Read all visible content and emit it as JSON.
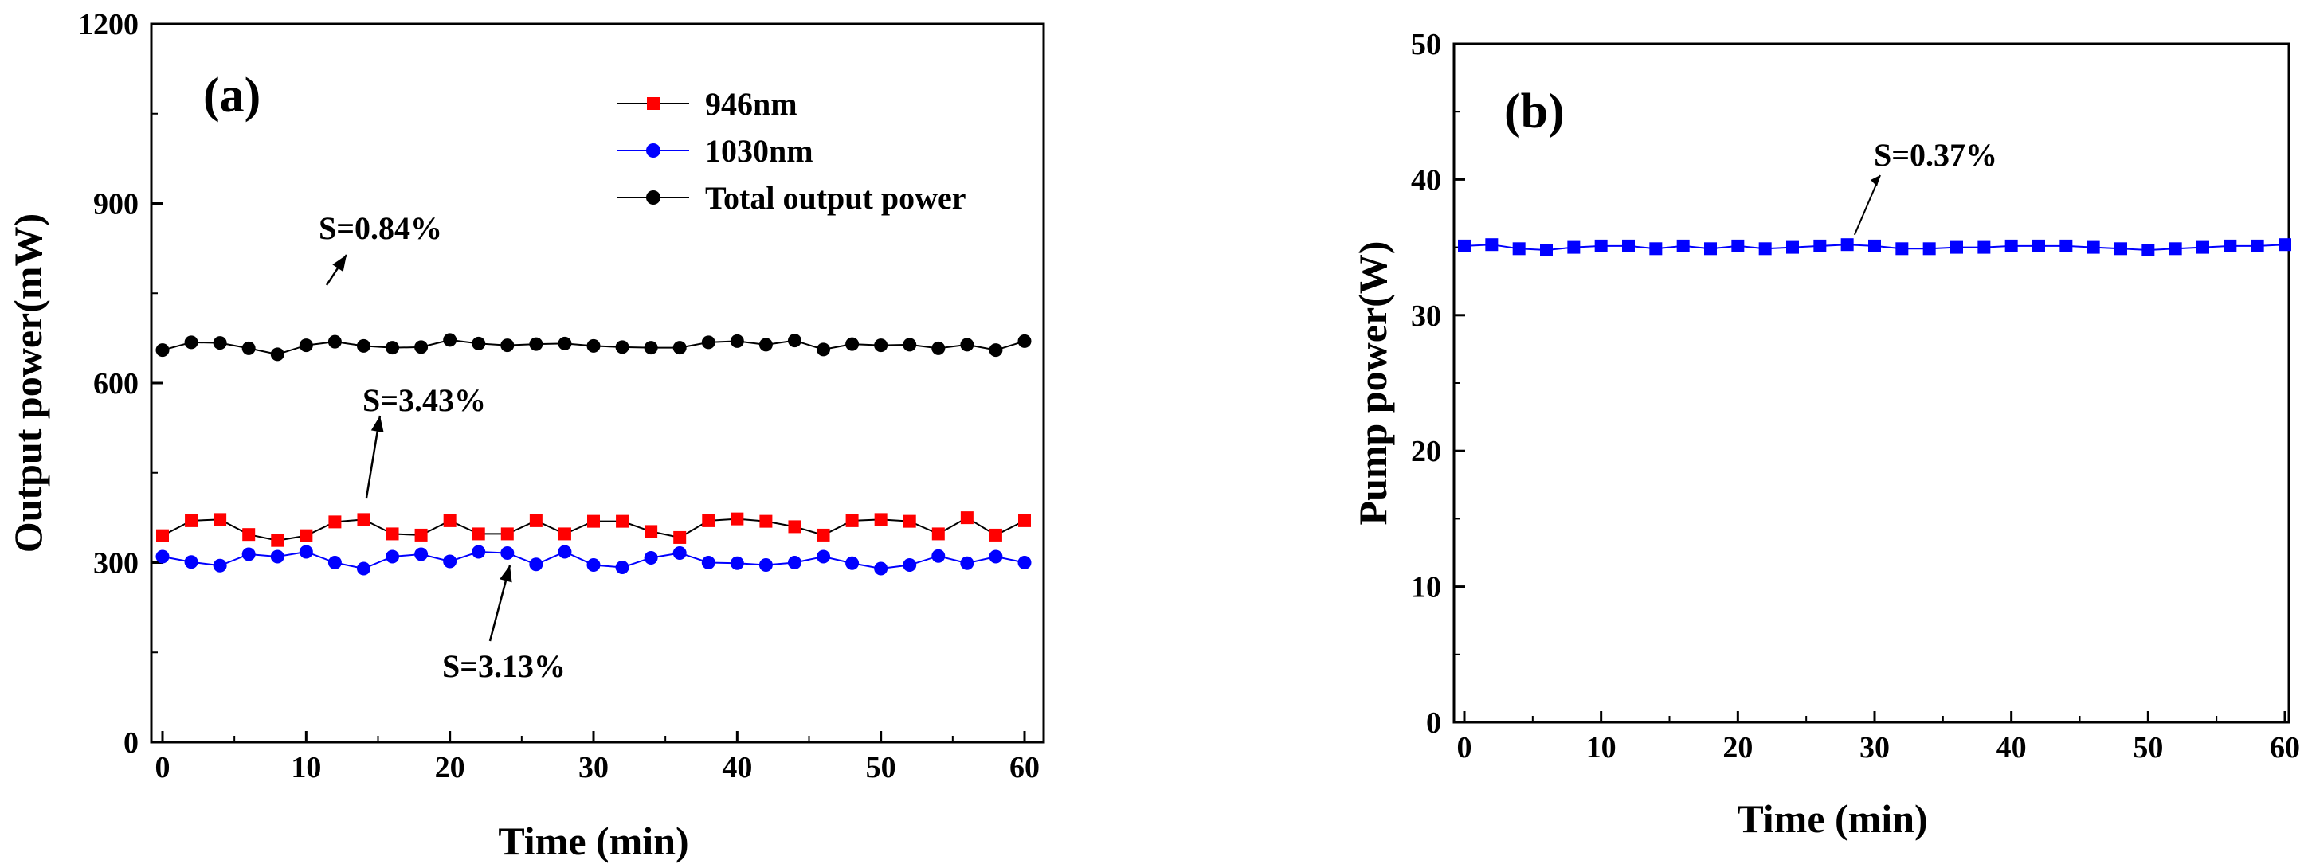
{
  "chart_data": [
    {
      "type": "line",
      "panel_label": "(a)",
      "xlabel": "Time (min)",
      "ylabel": "Output power(mW)",
      "xlim": [
        0,
        60
      ],
      "ylim": [
        0,
        1200
      ],
      "xticks": [
        0,
        10,
        20,
        30,
        40,
        50,
        60
      ],
      "yticks": [
        0,
        300,
        600,
        900,
        1200
      ],
      "grid": false,
      "legend_position": "top-right",
      "x": [
        0,
        2,
        4,
        6,
        8,
        10,
        12,
        14,
        16,
        18,
        20,
        22,
        24,
        26,
        28,
        30,
        32,
        34,
        36,
        38,
        40,
        42,
        44,
        46,
        48,
        50,
        52,
        54,
        56,
        58,
        60
      ],
      "series": [
        {
          "name": "946nm",
          "color": "#ff0000",
          "marker": "square",
          "values": [
            345,
            370,
            372,
            347,
            337,
            345,
            368,
            372,
            348,
            346,
            370,
            348,
            348,
            370,
            348,
            369,
            369,
            352,
            342,
            370,
            373,
            369,
            360,
            346,
            370,
            372,
            369,
            348,
            375,
            346,
            370
          ]
        },
        {
          "name": "1030nm",
          "color": "#0000ff",
          "marker": "circle",
          "values": [
            310,
            301,
            295,
            314,
            310,
            318,
            300,
            290,
            310,
            314,
            302,
            318,
            316,
            297,
            318,
            296,
            292,
            308,
            316,
            300,
            299,
            296,
            300,
            310,
            299,
            290,
            296,
            311,
            299,
            310,
            300
          ]
        },
        {
          "name": "Total output power",
          "color": "#000000",
          "marker": "circle",
          "values": [
            655,
            668,
            667,
            658,
            648,
            663,
            669,
            662,
            659,
            660,
            672,
            666,
            663,
            665,
            666,
            662,
            660,
            659,
            659,
            668,
            670,
            664,
            671,
            656,
            665,
            663,
            664,
            658,
            664,
            655,
            670
          ]
        }
      ],
      "annotations": [
        {
          "text": "S=0.84%",
          "target_x": 20,
          "target_y": 665
        },
        {
          "text": "S=3.43%",
          "target_x": 22,
          "target_y": 360
        },
        {
          "text": "S=3.13%",
          "target_x": 36,
          "target_y": 307
        }
      ]
    },
    {
      "type": "line",
      "panel_label": "(b)",
      "xlabel": "Time (min)",
      "ylabel": "Pump power(W)",
      "xlim": [
        0,
        60
      ],
      "ylim": [
        0,
        50
      ],
      "xticks": [
        0,
        10,
        20,
        30,
        40,
        50,
        60
      ],
      "yticks": [
        0,
        10,
        20,
        30,
        40,
        50
      ],
      "grid": false,
      "x": [
        0,
        2,
        4,
        6,
        8,
        10,
        12,
        14,
        16,
        18,
        20,
        22,
        24,
        26,
        28,
        30,
        32,
        34,
        36,
        38,
        40,
        42,
        44,
        46,
        48,
        50,
        52,
        54,
        56,
        58,
        60
      ],
      "series": [
        {
          "name": "Pump power",
          "color": "#0000ff",
          "marker": "square",
          "values": [
            35.1,
            35.2,
            34.9,
            34.8,
            35.0,
            35.1,
            35.1,
            34.9,
            35.1,
            34.9,
            35.1,
            34.9,
            35.0,
            35.1,
            35.2,
            35.1,
            34.9,
            34.9,
            35.0,
            35.0,
            35.1,
            35.1,
            35.1,
            35.0,
            34.9,
            34.8,
            34.9,
            35.0,
            35.1,
            35.1,
            35.2
          ]
        }
      ],
      "annotations": [
        {
          "text": "S=0.37%",
          "target_x": 29,
          "target_y": 35.1
        }
      ]
    }
  ]
}
